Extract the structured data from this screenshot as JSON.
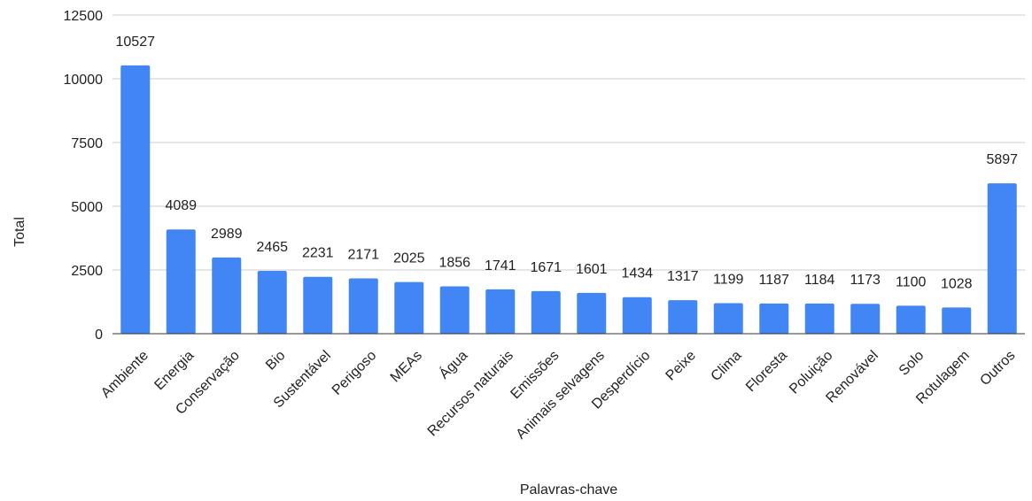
{
  "chart_data": {
    "type": "bar",
    "categories": [
      "Ambiente",
      "Energia",
      "Conservação",
      "Bio",
      "Sustentável",
      "Perigoso",
      "MEAs",
      "Água",
      "Recursos naturais",
      "Emissões",
      "Animais selvagens",
      "Desperdício",
      "Peixe",
      "Clima",
      "Floresta",
      "Poluição",
      "Renovável",
      "Solo",
      "Rotulagem",
      "Outros"
    ],
    "values": [
      10527,
      4089,
      2989,
      2465,
      2231,
      2171,
      2025,
      1856,
      1741,
      1671,
      1601,
      1434,
      1317,
      1199,
      1187,
      1184,
      1173,
      1100,
      1028,
      5897
    ],
    "xlabel": "Palavras-chave",
    "ylabel": "Total",
    "ylim": [
      0,
      12500
    ],
    "yticks": [
      0,
      2500,
      5000,
      7500,
      10000,
      12500
    ],
    "grid": true,
    "legend": "none",
    "bar_color": "#4285f4"
  }
}
